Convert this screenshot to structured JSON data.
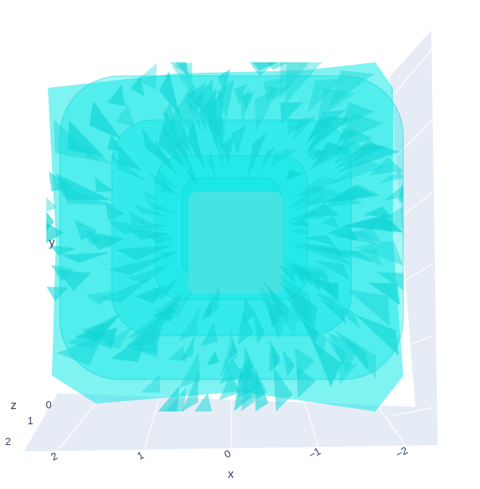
{
  "chart_data": {
    "type": "mesh3d",
    "title": "",
    "color": "#00e5e5",
    "opacity": 0.5,
    "scene_background": "#e5ecf6",
    "grid_color": "#ffffff",
    "grid": true,
    "x_axis": {
      "title": "x",
      "ticks": [
        2,
        1,
        0,
        -1,
        -2
      ],
      "tick_labels": [
        "2",
        "1",
        "0",
        "−1",
        "−2"
      ]
    },
    "y_axis": {
      "title": "y",
      "ticks": [],
      "tick_labels": []
    },
    "z_axis": {
      "title": "z",
      "ticks": [
        0,
        1,
        2
      ],
      "tick_labels": [
        "0",
        "1",
        "2"
      ]
    }
  }
}
